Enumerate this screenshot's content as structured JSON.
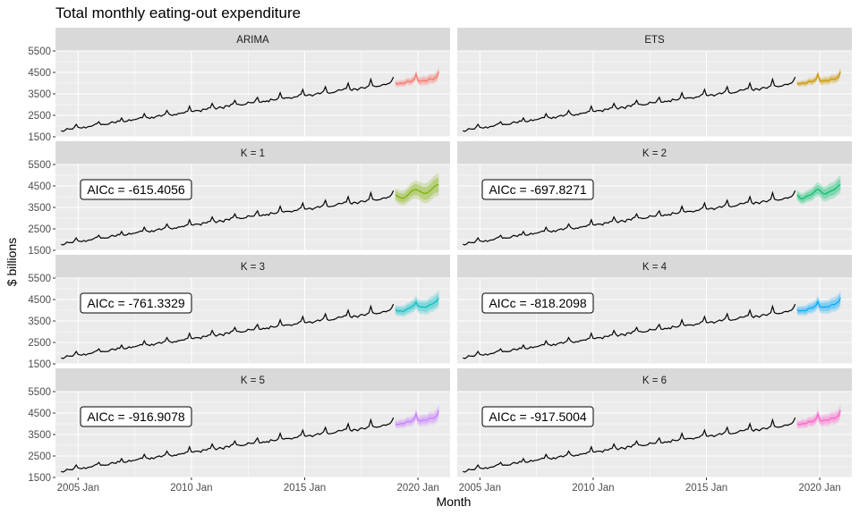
{
  "chart_data": {
    "type": "line",
    "title": "Total monthly eating-out expenditure",
    "xlabel": "Month",
    "ylabel": "$ billions",
    "x_ticks": [
      "2005 Jan",
      "2010 Jan",
      "2015 Jan",
      "2020 Jan"
    ],
    "y_ticks": [
      1500,
      2500,
      3500,
      4500,
      5500
    ],
    "ylim": [
      1500,
      5500
    ],
    "xlim": [
      "2004-01",
      "2021-06"
    ],
    "history": {
      "start": "2004-04",
      "end": "2018-12",
      "trend_start": 1780,
      "trend_end": 4000,
      "seasonal": [
        0,
        -40,
        -35,
        -20,
        -45,
        -40,
        20,
        10,
        -20,
        30,
        60,
        260
      ]
    },
    "panels": [
      {
        "label": "ARIMA",
        "color": "#F8766D",
        "fc_start": "2019-01",
        "fc_end": "2020-12",
        "fc_level": 4000,
        "fc_growth": 230,
        "fc_interval": 180,
        "fc_shape": "seasonal",
        "aicc": ""
      },
      {
        "label": "ETS",
        "color": "#CD9600",
        "fc_start": "2019-01",
        "fc_end": "2020-12",
        "fc_level": 4000,
        "fc_growth": 230,
        "fc_interval": 160,
        "fc_shape": "seasonal",
        "aicc": ""
      },
      {
        "label": "K = 1",
        "color": "#7CAE00",
        "fc_start": "2019-01",
        "fc_end": "2020-12",
        "fc_level": 4000,
        "fc_growth": 420,
        "fc_interval": 380,
        "fc_shape": "k1",
        "aicc": "AICc = -615.4056"
      },
      {
        "label": "K = 2",
        "color": "#00BE67",
        "fc_start": "2019-01",
        "fc_end": "2020-12",
        "fc_level": 3980,
        "fc_growth": 420,
        "fc_interval": 300,
        "fc_shape": "k2",
        "aicc": "AICc = -697.8271"
      },
      {
        "label": "K = 3",
        "color": "#00BFC4",
        "fc_start": "2019-01",
        "fc_end": "2020-12",
        "fc_level": 3980,
        "fc_growth": 360,
        "fc_interval": 280,
        "fc_shape": "k3",
        "aicc": "AICc = -761.3329"
      },
      {
        "label": "K = 4",
        "color": "#00A9FF",
        "fc_start": "2019-01",
        "fc_end": "2020-12",
        "fc_level": 3990,
        "fc_growth": 330,
        "fc_interval": 260,
        "fc_shape": "k4",
        "aicc": "AICc = -818.2098"
      },
      {
        "label": "K = 5",
        "color": "#C77CFF",
        "fc_start": "2019-01",
        "fc_end": "2020-12",
        "fc_level": 4000,
        "fc_growth": 310,
        "fc_interval": 230,
        "fc_shape": "seasonal",
        "aicc": "AICc = -916.9078"
      },
      {
        "label": "K = 6",
        "color": "#FF61CC",
        "fc_start": "2019-01",
        "fc_end": "2020-12",
        "fc_level": 4000,
        "fc_growth": 310,
        "fc_interval": 230,
        "fc_shape": "seasonal",
        "aicc": "AICc = -917.5004"
      }
    ]
  }
}
